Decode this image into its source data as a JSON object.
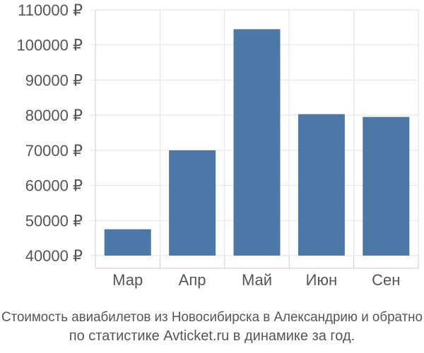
{
  "chart_data": {
    "type": "bar",
    "categories": [
      "Мар",
      "Апр",
      "Май",
      "Июн",
      "Сен"
    ],
    "values": [
      47500,
      70000,
      104500,
      80300,
      79500
    ],
    "ylim": [
      40000,
      110000
    ],
    "yticks": [
      40000,
      50000,
      60000,
      70000,
      80000,
      90000,
      100000,
      110000
    ],
    "ytick_labels": [
      "40000 ₽",
      "50000 ₽",
      "60000 ₽",
      "70000 ₽",
      "80000 ₽",
      "90000 ₽",
      "100000 ₽",
      "110000 ₽"
    ],
    "grid": true,
    "bar_color": "#4c78a8",
    "caption_line1": "Стоимость авиабилетов из Новосибирска в Александрию и обратно",
    "caption_line2": "по статистике Avticket.ru в динамике за год."
  }
}
